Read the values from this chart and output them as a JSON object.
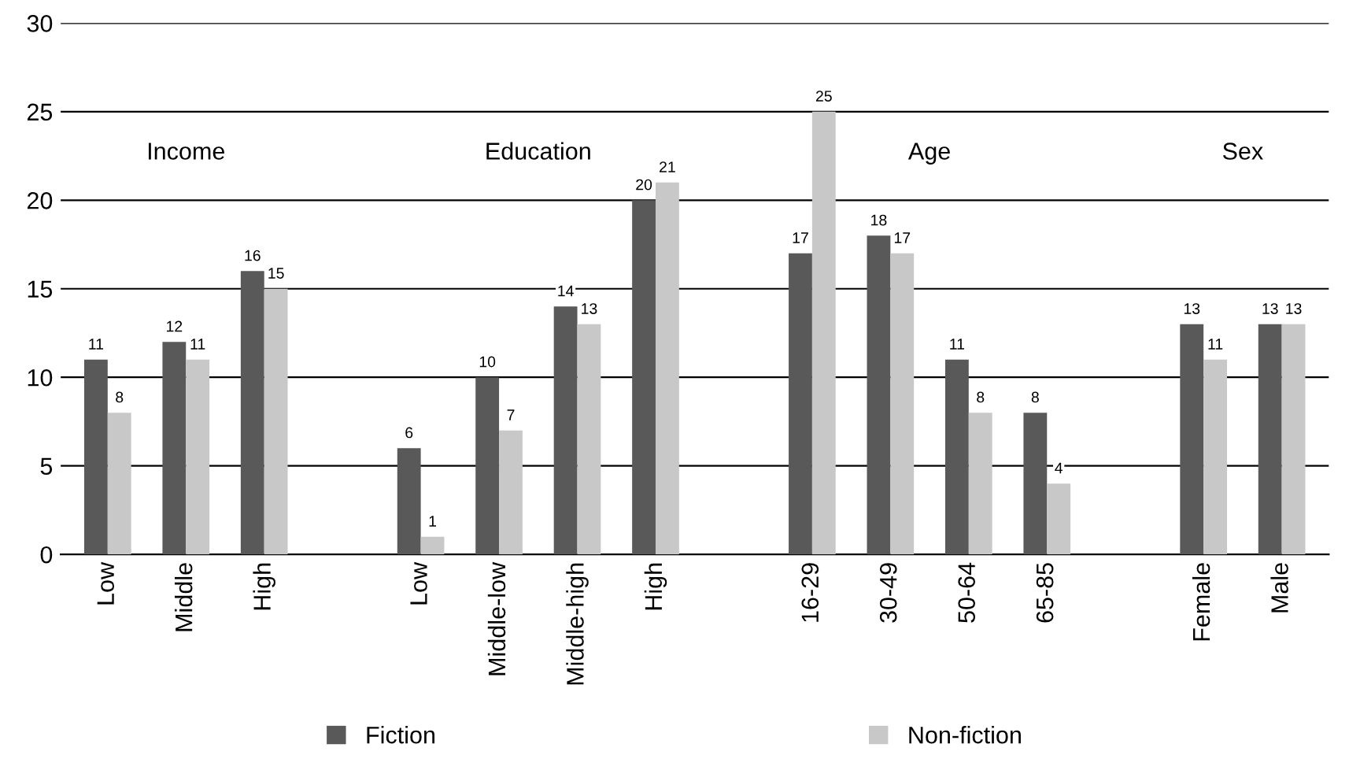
{
  "chart_data": {
    "type": "bar",
    "categories": [
      "Low",
      "Middle",
      "High",
      null,
      "Low",
      "Middle-low",
      "Middle-high",
      "High",
      null,
      "16-29",
      "30-49",
      "50-64",
      "65-85",
      null,
      "Female",
      "Male"
    ],
    "series": [
      {
        "name": "Fiction",
        "color": "#595959",
        "values": [
          11,
          12,
          16,
          null,
          6,
          10,
          14,
          20,
          null,
          17,
          18,
          11,
          8,
          null,
          13,
          13
        ]
      },
      {
        "name": "Non-fiction",
        "color": "#c8c8c8",
        "values": [
          8,
          11,
          15,
          null,
          1,
          7,
          13,
          21,
          null,
          25,
          17,
          8,
          4,
          null,
          11,
          13
        ]
      }
    ],
    "annotations": [
      "Income",
      "Education",
      "Age",
      "Sex"
    ],
    "ylim": [
      0,
      30
    ],
    "yticks": [
      0,
      5,
      10,
      15,
      20,
      25,
      30
    ],
    "grid": "y",
    "legend": "bottom",
    "data_labels": true
  }
}
